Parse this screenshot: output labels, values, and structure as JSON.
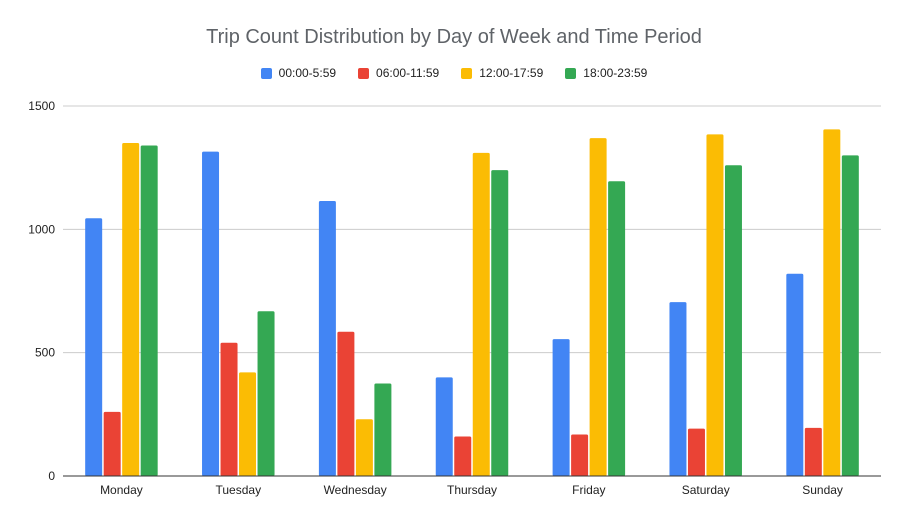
{
  "chart_data": {
    "type": "bar",
    "title": "Trip Count Distribution by Day of Week and Time Period",
    "xlabel": "",
    "ylabel": "",
    "ylim": [
      0,
      1500
    ],
    "yticks": [
      0,
      500,
      1000,
      1500
    ],
    "grid": true,
    "legend_position": "top",
    "categories": [
      "Monday",
      "Tuesday",
      "Wednesday",
      "Thursday",
      "Friday",
      "Saturday",
      "Sunday"
    ],
    "series": [
      {
        "name": "00:00-5:59",
        "color": "#4285f4",
        "values": [
          1045,
          1315,
          1115,
          400,
          555,
          705,
          820
        ]
      },
      {
        "name": "06:00-11:59",
        "color": "#ea4335",
        "values": [
          260,
          540,
          585,
          160,
          168,
          192,
          195
        ]
      },
      {
        "name": "12:00-17:59",
        "color": "#fbbc04",
        "values": [
          1350,
          420,
          230,
          1310,
          1370,
          1385,
          1405
        ]
      },
      {
        "name": "18:00-23:59",
        "color": "#34a853",
        "values": [
          1340,
          668,
          375,
          1240,
          1195,
          1260,
          1300
        ]
      }
    ]
  }
}
